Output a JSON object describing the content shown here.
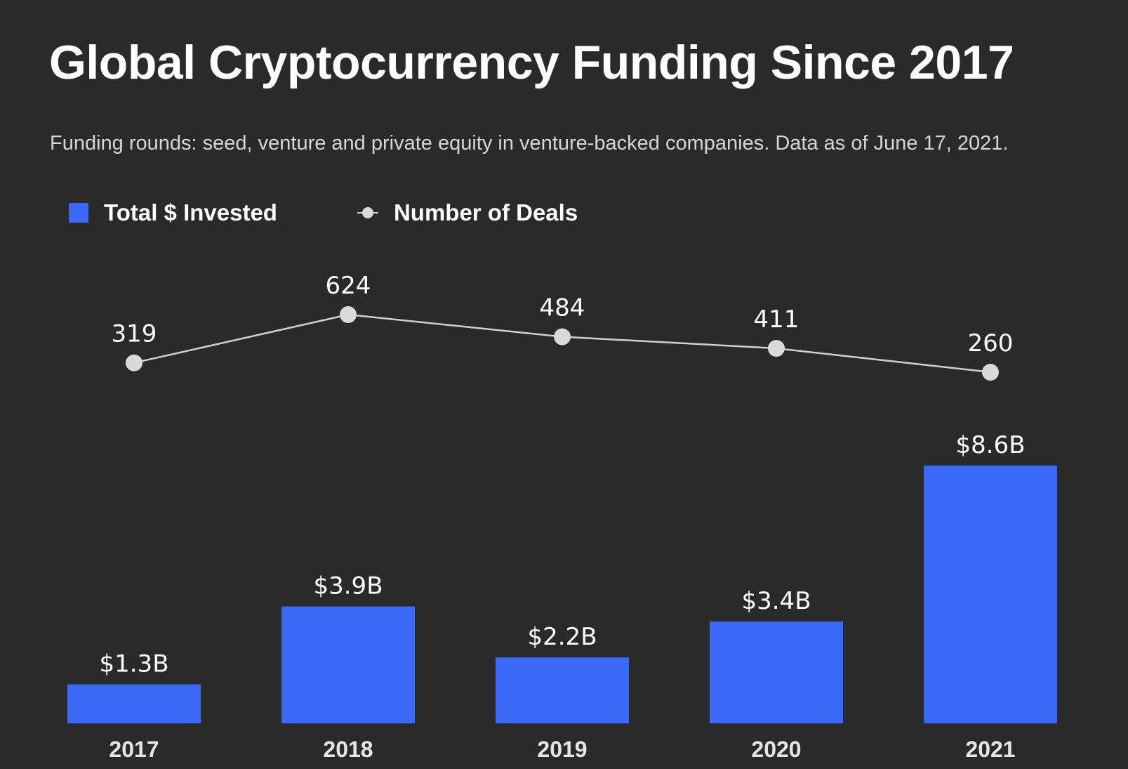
{
  "colors": {
    "background": "#2a2a2a",
    "bar": "#3a6af5",
    "line": "#d0d0d0",
    "marker": "#d9d9d9",
    "text": "#ffffff"
  },
  "chart_data": {
    "type": "bar",
    "title": "Global Cryptocurrency Funding Since 2017",
    "subtitle": "Funding rounds: seed, venture and private equity in venture-backed companies. Data as of June 17, 2021.",
    "categories": [
      "2017",
      "2018",
      "2019",
      "2020",
      "2021"
    ],
    "series": [
      {
        "name": "Total $ Invested",
        "kind": "bar",
        "unit": "billion USD",
        "values": [
          1.3,
          3.9,
          2.2,
          3.4,
          8.6
        ],
        "labels": [
          "$1.3B",
          "$3.9B",
          "$2.2B",
          "$3.4B",
          "$8.6B"
        ]
      },
      {
        "name": "Number of Deals",
        "kind": "line",
        "values": [
          319,
          624,
          484,
          411,
          260
        ],
        "labels": [
          "319",
          "624",
          "484",
          "411",
          "260"
        ]
      }
    ],
    "legend": [
      "Total $ Invested",
      "Number of Deals"
    ],
    "legend_position": "top-left",
    "xlabel": "",
    "ylabel": "",
    "grid": false,
    "ylim_bar": [
      0,
      8.6
    ],
    "ylim_line": [
      260,
      624
    ]
  }
}
